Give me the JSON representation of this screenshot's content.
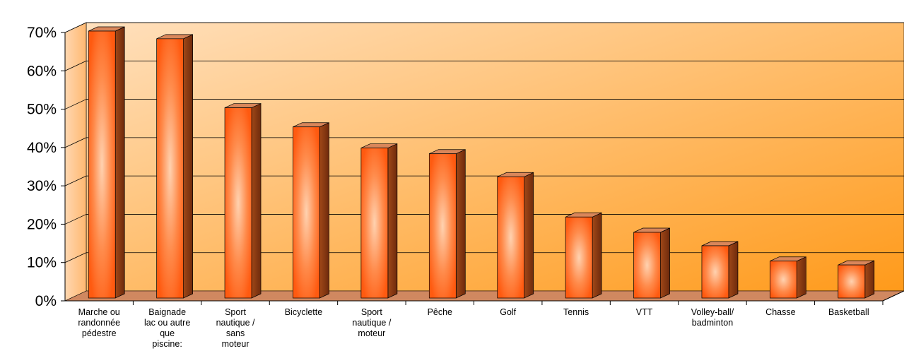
{
  "chart_data": {
    "type": "bar",
    "title": "",
    "xlabel": "",
    "ylabel": "",
    "ylim": [
      0,
      70
    ],
    "y_tick_step": 10,
    "y_tick_format": "percent",
    "grid": true,
    "legend": "none",
    "categories": [
      "Marche ou randonnée pédestre",
      "Baignade lac ou autre que piscine:",
      "Sport nautique / sans moteur",
      "Bicyclette",
      "Sport nautique / moteur",
      "Pêche",
      "Golf",
      "Tennis",
      "VTT",
      "Volley-ball/ badminton",
      "Chasse",
      "Basketball"
    ],
    "category_label_lines": [
      [
        "Marche ou",
        "randonnée",
        "pédestre"
      ],
      [
        "Baignade",
        "lac ou autre",
        "que",
        "piscine:"
      ],
      [
        "Sport",
        "nautique /",
        "sans",
        "moteur"
      ],
      [
        "Bicyclette"
      ],
      [
        "Sport",
        "nautique /",
        "moteur"
      ],
      [
        "Pêche"
      ],
      [
        "Golf"
      ],
      [
        "Tennis"
      ],
      [
        "VTT"
      ],
      [
        "Volley-ball/",
        "badminton"
      ],
      [
        "Chasse"
      ],
      [
        "Basketball"
      ]
    ],
    "values": [
      70,
      68,
      50,
      45,
      39.5,
      38,
      32,
      21.5,
      17.5,
      14,
      10,
      9
    ],
    "colors": {
      "bar_front": "#ff6a1a",
      "bar_highlight": "#ffd2b0",
      "bar_side": "#8a3a14",
      "bar_top": "#d9865a",
      "wall_light": "#ffe0bd",
      "wall_dark": "#ff9a1a",
      "side_wall": "#ffbf80",
      "floor": "#d08860",
      "gridline": "#000000"
    }
  }
}
